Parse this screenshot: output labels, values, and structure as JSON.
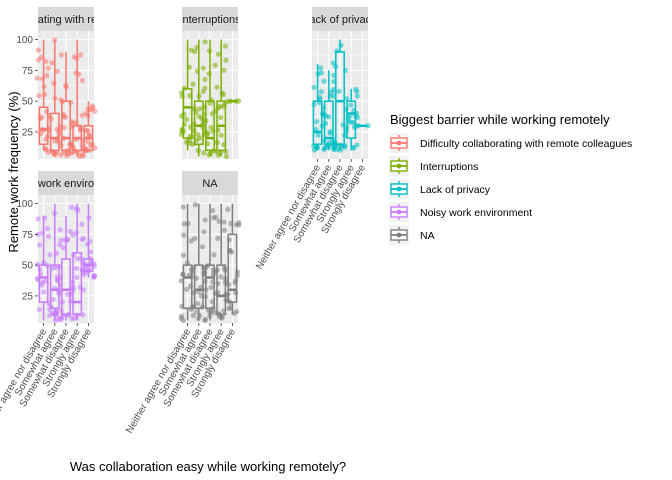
{
  "chart_data": {
    "type": "boxplot",
    "xlabel": "Was collaboration easy while working remotely?",
    "ylabel": "Remote work frequency (%)",
    "ylim": [
      3,
      107
    ],
    "yticks": [
      25,
      50,
      75,
      100
    ],
    "categories": [
      "Neither agree nor disagree",
      "Somewhat agree",
      "Somewhat disagree",
      "Strongly agree",
      "Strongly disagree"
    ],
    "legend": {
      "title": "Biggest barrier while working remotely",
      "placement": "right",
      "items": [
        {
          "label": "Difficulty collaborating with remote colleagues",
          "color": "#F8766D"
        },
        {
          "label": "Interruptions",
          "color": "#7CAE00"
        },
        {
          "label": "Lack of privacy",
          "color": "#00BFC4"
        },
        {
          "label": "Noisy work environment",
          "color": "#C77CFF"
        },
        {
          "label": "NA",
          "color": "#7F7F7F"
        }
      ]
    },
    "facets": [
      {
        "strip": "Difficulty collaborating with remote colleagues",
        "color": "#F8766D",
        "boxes": [
          {
            "category": "Neither agree nor disagree",
            "min": 10,
            "q1": 15,
            "median": 27,
            "q3": 45,
            "max": 100
          },
          {
            "category": "Somewhat agree",
            "min": 5,
            "q1": 10,
            "median": 20,
            "q3": 40,
            "max": 100
          },
          {
            "category": "Somewhat disagree",
            "min": 5,
            "q1": 10,
            "median": 20,
            "q3": 50,
            "max": 90
          },
          {
            "category": "Strongly agree",
            "min": 5,
            "q1": 10,
            "median": 20,
            "q3": 30,
            "max": 100
          },
          {
            "category": "Strongly disagree",
            "min": 10,
            "q1": 10,
            "median": 20,
            "q3": 30,
            "max": 50
          }
        ]
      },
      {
        "strip": "Interruptions",
        "color": "#7CAE00",
        "boxes": [
          {
            "category": "Neither agree nor disagree",
            "min": 10,
            "q1": 20,
            "median": 45,
            "q3": 60,
            "max": 100
          },
          {
            "category": "Somewhat agree",
            "min": 5,
            "q1": 15,
            "median": 30,
            "q3": 50,
            "max": 100
          },
          {
            "category": "Somewhat disagree",
            "min": 5,
            "q1": 10,
            "median": 20,
            "q3": 50,
            "max": 100
          },
          {
            "category": "Strongly agree",
            "min": 5,
            "q1": 10,
            "median": 30,
            "q3": 50,
            "max": 100
          },
          {
            "category": "Strongly disagree",
            "min": 50,
            "q1": 50,
            "median": 50,
            "q3": 50,
            "max": 50
          }
        ]
      },
      {
        "strip": "Lack of privacy",
        "color": "#00BFC4",
        "boxes": [
          {
            "category": "Neither agree nor disagree",
            "min": 10,
            "q1": 15,
            "median": 25,
            "q3": 50,
            "max": 80
          },
          {
            "category": "Somewhat agree",
            "min": 10,
            "q1": 15,
            "median": 20,
            "q3": 50,
            "max": 75
          },
          {
            "category": "Somewhat disagree",
            "min": 10,
            "q1": 15,
            "median": 50,
            "q3": 90,
            "max": 100
          },
          {
            "category": "Strongly agree",
            "min": 10,
            "q1": 20,
            "median": 40,
            "q3": 50,
            "max": 60
          },
          {
            "category": "Strongly disagree",
            "min": 30,
            "q1": 30,
            "median": 30,
            "q3": 30,
            "max": 30
          }
        ]
      },
      {
        "strip": "Noisy work environment",
        "color": "#C77CFF",
        "boxes": [
          {
            "category": "Neither agree nor disagree",
            "min": 5,
            "q1": 20,
            "median": 40,
            "q3": 50,
            "max": 90
          },
          {
            "category": "Somewhat agree",
            "min": 5,
            "q1": 15,
            "median": 30,
            "q3": 50,
            "max": 100
          },
          {
            "category": "Somewhat disagree",
            "min": 5,
            "q1": 10,
            "median": 30,
            "q3": 55,
            "max": 90
          },
          {
            "category": "Strongly agree",
            "min": 5,
            "q1": 10,
            "median": 20,
            "q3": 60,
            "max": 100
          },
          {
            "category": "Strongly disagree",
            "min": 40,
            "q1": 45,
            "median": 50,
            "q3": 55,
            "max": 100
          }
        ]
      },
      {
        "strip": "NA",
        "color": "#7F7F7F",
        "boxes": [
          {
            "category": "Neither agree nor disagree",
            "min": 5,
            "q1": 15,
            "median": 40,
            "q3": 50,
            "max": 100
          },
          {
            "category": "Somewhat agree",
            "min": 5,
            "q1": 15,
            "median": 30,
            "q3": 50,
            "max": 100
          },
          {
            "category": "Somewhat disagree",
            "min": 5,
            "q1": 15,
            "median": 40,
            "q3": 50,
            "max": 100
          },
          {
            "category": "Strongly agree",
            "min": 5,
            "q1": 10,
            "median": 25,
            "q3": 50,
            "max": 100
          },
          {
            "category": "Strongly disagree",
            "min": 10,
            "q1": 20,
            "median": 30,
            "q3": 75,
            "max": 100
          }
        ]
      }
    ]
  }
}
